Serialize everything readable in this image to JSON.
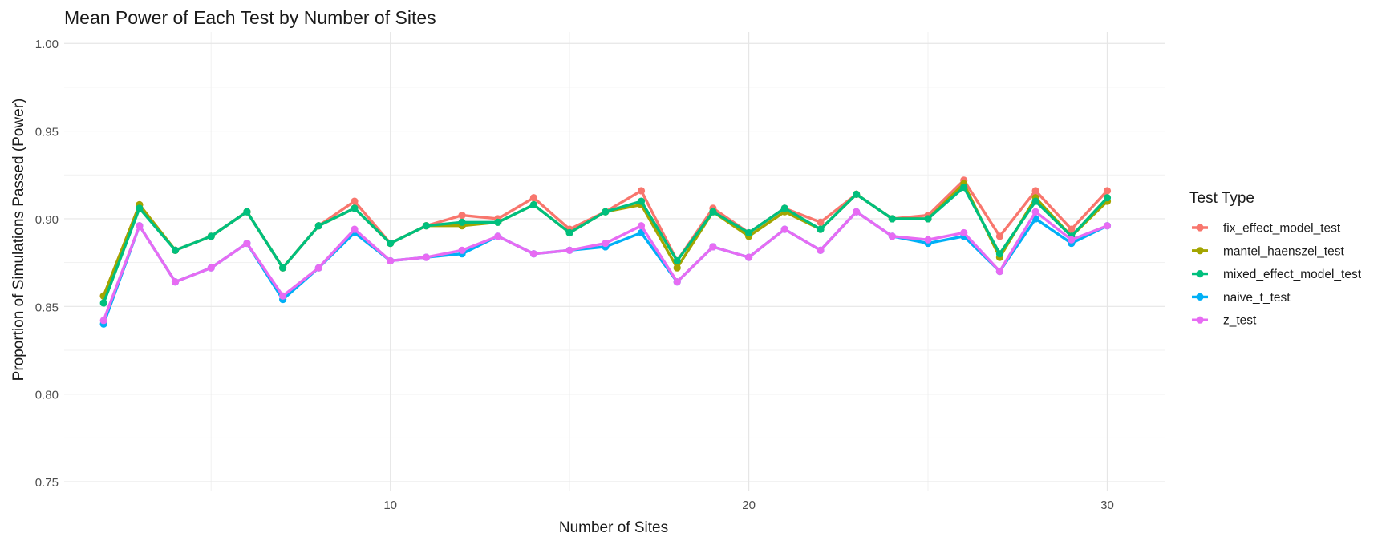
{
  "chart_data": {
    "type": "line",
    "title": "Mean Power of Each Test by Number of Sites",
    "xlabel": "Number of Sites",
    "ylabel": "Proportion of Simulations Passed (Power)",
    "xlim": [
      0.9,
      31.6
    ],
    "ylim": [
      0.745,
      1.0065
    ],
    "x_ticks": [
      10,
      20,
      30
    ],
    "y_ticks": [
      0.75,
      0.8,
      0.85,
      0.9,
      0.95,
      1.0
    ],
    "y_tick_labels": [
      "0.75",
      "0.80",
      "0.85",
      "0.90",
      "0.95",
      "1.00"
    ],
    "grid": true,
    "legend_title": "Test Type",
    "legend_position": "right",
    "x": [
      2,
      3,
      4,
      5,
      6,
      7,
      8,
      9,
      10,
      11,
      12,
      13,
      14,
      15,
      16,
      17,
      18,
      19,
      20,
      21,
      22,
      23,
      24,
      25,
      26,
      27,
      28,
      29,
      30
    ],
    "series": [
      {
        "name": "fix_effect_model_test",
        "color": "#F8766D",
        "values": [
          0.856,
          0.908,
          0.882,
          0.89,
          0.904,
          0.872,
          0.896,
          0.91,
          0.886,
          0.896,
          0.902,
          0.9,
          0.912,
          0.894,
          0.904,
          0.916,
          0.876,
          0.906,
          0.892,
          0.906,
          0.898,
          0.914,
          0.9,
          0.902,
          0.922,
          0.89,
          0.916,
          0.894,
          0.916
        ]
      },
      {
        "name": "mantel_haenszel_test",
        "color": "#A3A500",
        "values": [
          0.856,
          0.908,
          0.882,
          0.89,
          0.904,
          0.872,
          0.896,
          0.906,
          0.886,
          0.896,
          0.896,
          0.898,
          0.908,
          0.892,
          0.904,
          0.908,
          0.872,
          0.904,
          0.89,
          0.904,
          0.894,
          0.914,
          0.9,
          0.9,
          0.92,
          0.878,
          0.912,
          0.89,
          0.91
        ]
      },
      {
        "name": "mixed_effect_model_test",
        "color": "#00BF7D",
        "values": [
          0.852,
          0.906,
          0.882,
          0.89,
          0.904,
          0.872,
          0.896,
          0.906,
          0.886,
          0.896,
          0.898,
          0.898,
          0.908,
          0.892,
          0.904,
          0.91,
          0.876,
          0.904,
          0.892,
          0.906,
          0.894,
          0.914,
          0.9,
          0.9,
          0.918,
          0.88,
          0.91,
          0.89,
          0.912
        ]
      },
      {
        "name": "naive_t_test",
        "color": "#00B0F6",
        "values": [
          0.84,
          0.896,
          0.864,
          0.872,
          0.886,
          0.854,
          0.872,
          0.892,
          0.876,
          0.878,
          0.88,
          0.89,
          0.88,
          0.882,
          0.884,
          0.892,
          0.864,
          0.884,
          0.878,
          0.894,
          0.882,
          0.904,
          0.89,
          0.886,
          0.89,
          0.87,
          0.9,
          0.886,
          0.896
        ]
      },
      {
        "name": "z_test",
        "color": "#E76BF3",
        "values": [
          0.842,
          0.896,
          0.864,
          0.872,
          0.886,
          0.856,
          0.872,
          0.894,
          0.876,
          0.878,
          0.882,
          0.89,
          0.88,
          0.882,
          0.886,
          0.896,
          0.864,
          0.884,
          0.878,
          0.894,
          0.882,
          0.904,
          0.89,
          0.888,
          0.892,
          0.87,
          0.904,
          0.888,
          0.896
        ]
      }
    ]
  }
}
